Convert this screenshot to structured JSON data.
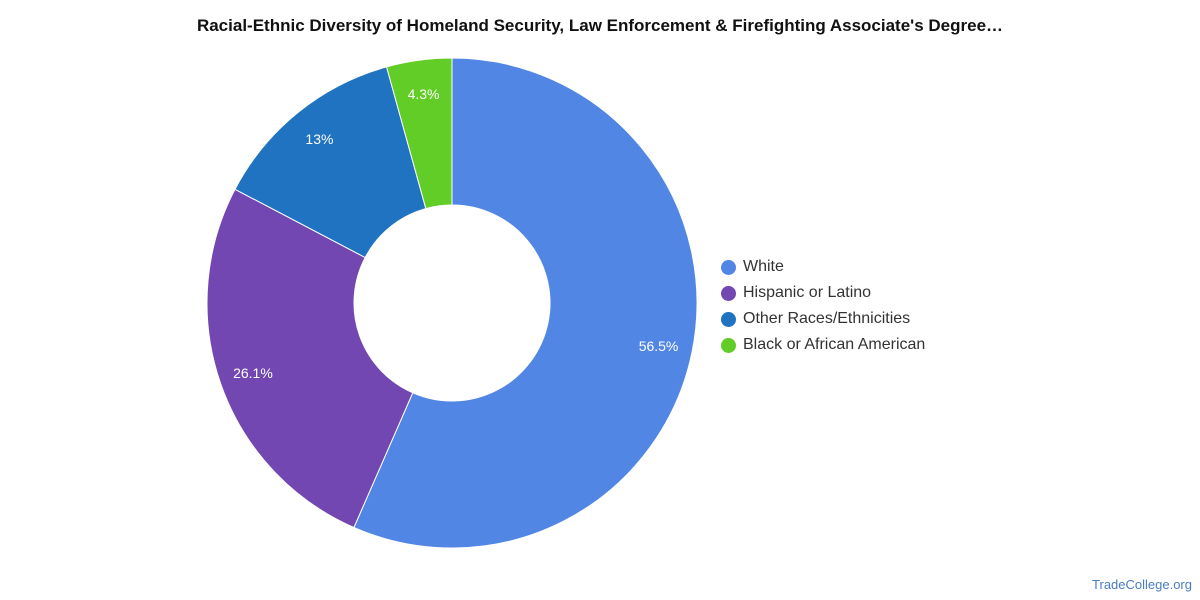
{
  "chart_data": {
    "type": "pie",
    "donut": true,
    "title": "Racial-Ethnic Diversity of Homeland Security, Law Enforcement & Firefighting Associate's Degree…",
    "categories": [
      "White",
      "Hispanic or Latino",
      "Other Races/Ethnicities",
      "Black or African American"
    ],
    "values": [
      56.5,
      26.1,
      13,
      4.3
    ],
    "labels": [
      "56.5%",
      "26.1%",
      "13%",
      "4.3%"
    ],
    "colors": [
      "#5286e4",
      "#7347b2",
      "#1f73c0",
      "#62cd26"
    ],
    "legend_position": "right"
  },
  "footer": {
    "source": "TradeCollege.org"
  }
}
